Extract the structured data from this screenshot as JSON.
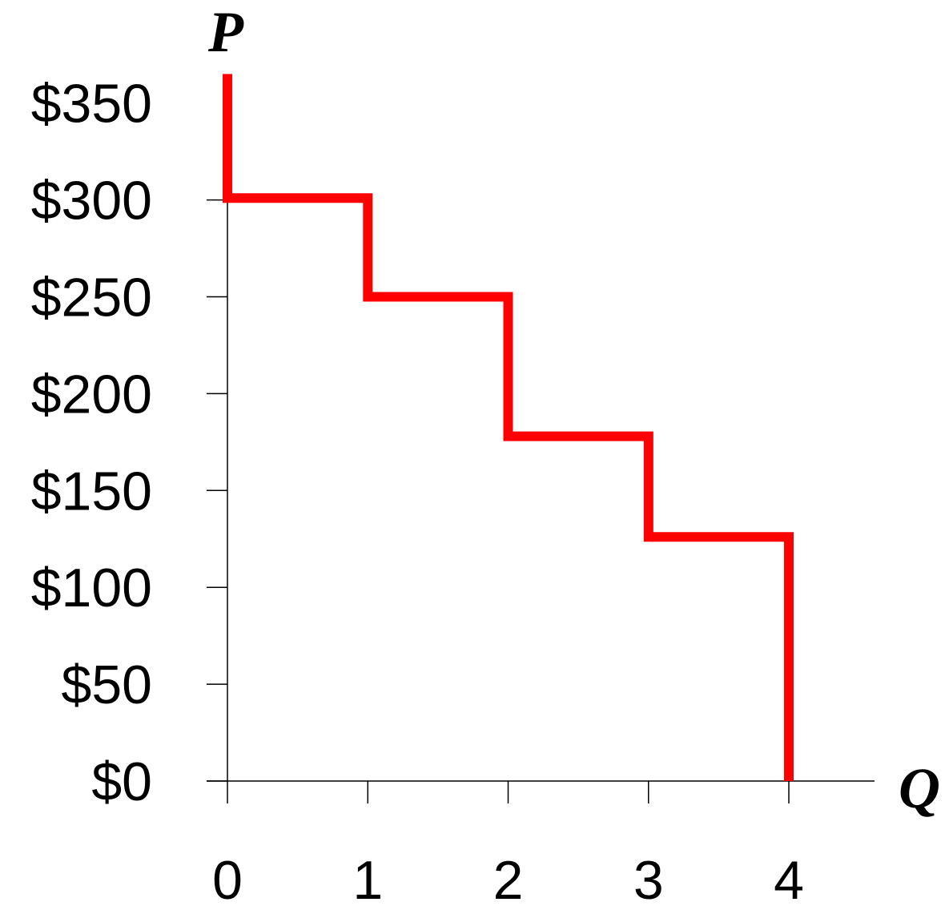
{
  "chart_data": {
    "type": "line",
    "step": true,
    "ylabel": "P",
    "xlabel": "Q",
    "xlim": [
      0,
      4
    ],
    "ylim": [
      0,
      350
    ],
    "x_ticks": [
      0,
      1,
      2,
      3,
      4
    ],
    "x_tick_labels": [
      "0",
      "1",
      "2",
      "3",
      "4"
    ],
    "y_ticks": [
      0,
      50,
      100,
      150,
      200,
      250,
      300,
      350
    ],
    "y_tick_labels": [
      "$0",
      "$50",
      "$100",
      "$150",
      "$200",
      "$250",
      "$300",
      "$350"
    ],
    "grid": false,
    "legend": "none",
    "series": [
      {
        "color": "#ff0000",
        "points": [
          [
            0,
            365
          ],
          [
            0,
            301
          ],
          [
            1,
            301
          ],
          [
            1,
            250
          ],
          [
            2,
            250
          ],
          [
            2,
            178
          ],
          [
            3,
            178
          ],
          [
            3,
            126
          ],
          [
            4,
            126
          ],
          [
            4,
            0
          ]
        ]
      }
    ]
  }
}
